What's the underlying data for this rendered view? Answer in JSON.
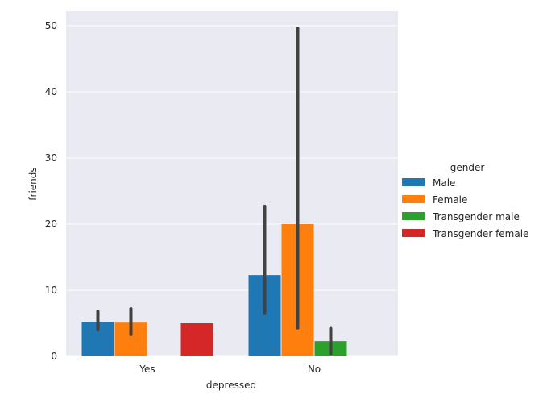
{
  "chart_data": {
    "type": "bar",
    "xlabel": "depressed",
    "ylabel": "friends",
    "categories": [
      "Yes",
      "No"
    ],
    "ylim": [
      0,
      52
    ],
    "yticks": [
      0,
      10,
      20,
      30,
      40,
      50
    ],
    "grid": true,
    "legend": {
      "title": "gender",
      "placement": "right"
    },
    "series": [
      {
        "name": "Male",
        "color": "#1f77b4",
        "values": [
          5.2,
          12.3
        ],
        "ci": [
          [
            4.0,
            6.8
          ],
          [
            6.5,
            22.7
          ]
        ]
      },
      {
        "name": "Female",
        "color": "#ff7f0e",
        "values": [
          5.1,
          20.0
        ],
        "ci": [
          [
            3.3,
            7.2
          ],
          [
            4.3,
            49.6
          ]
        ]
      },
      {
        "name": "Transgender male",
        "color": "#2ca02c",
        "values": [
          null,
          2.3
        ],
        "ci": [
          null,
          [
            0.4,
            4.2
          ]
        ]
      },
      {
        "name": "Transgender female",
        "color": "#d62728",
        "values": [
          5.0,
          null
        ],
        "ci": [
          null,
          null
        ]
      }
    ]
  }
}
